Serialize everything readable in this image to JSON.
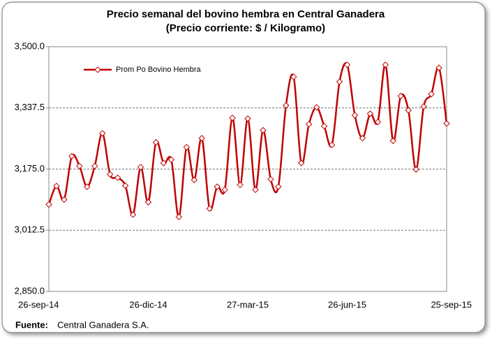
{
  "chart_data": {
    "type": "line",
    "title": "Precio semanal del bovino  hembra en Central Ganadera",
    "subtitle": "(Precio corriente: $ / Kilogramo)",
    "categories": [
      "26-sep-14",
      null,
      null,
      null,
      null,
      null,
      null,
      null,
      null,
      null,
      null,
      null,
      null,
      "26-dic-14",
      null,
      null,
      null,
      null,
      null,
      null,
      null,
      null,
      null,
      null,
      null,
      null,
      "27-mar-15",
      null,
      null,
      null,
      null,
      null,
      null,
      null,
      null,
      null,
      null,
      null,
      null,
      "26-jun-15",
      null,
      null,
      null,
      null,
      null,
      null,
      null,
      null,
      null,
      null,
      null,
      null,
      "25-sep-15"
    ],
    "series": [
      {
        "name": "Prom Po Bovino Hembra",
        "color": "#c00000",
        "values": [
          3081,
          3130,
          3094,
          3209,
          3183,
          3128,
          3183,
          3270,
          3161,
          3152,
          3131,
          3054,
          3180,
          3087,
          3246,
          3191,
          3200,
          3048,
          3233,
          3146,
          3257,
          3070,
          3128,
          3120,
          3311,
          3133,
          3309,
          3120,
          3278,
          3148,
          3128,
          3344,
          3420,
          3191,
          3294,
          3339,
          3289,
          3239,
          3407,
          3452,
          3318,
          3257,
          3322,
          3300,
          3452,
          3250,
          3369,
          3331,
          3174,
          3341,
          3374,
          3444,
          3296
        ]
      }
    ],
    "ylim": [
      2850,
      3500
    ],
    "yticks": [
      {
        "value": 2850,
        "label": "2,850.0"
      },
      {
        "value": 3012.5,
        "label": "3,012.5"
      },
      {
        "value": 3175,
        "label": "3,175.0"
      },
      {
        "value": 3337.5,
        "label": "3,337.5"
      },
      {
        "value": 3500,
        "label": "3,500.0"
      }
    ],
    "grid": true,
    "legend": "upper-left",
    "source_label": "Fuente:",
    "source": "Central Ganadera S.A."
  }
}
